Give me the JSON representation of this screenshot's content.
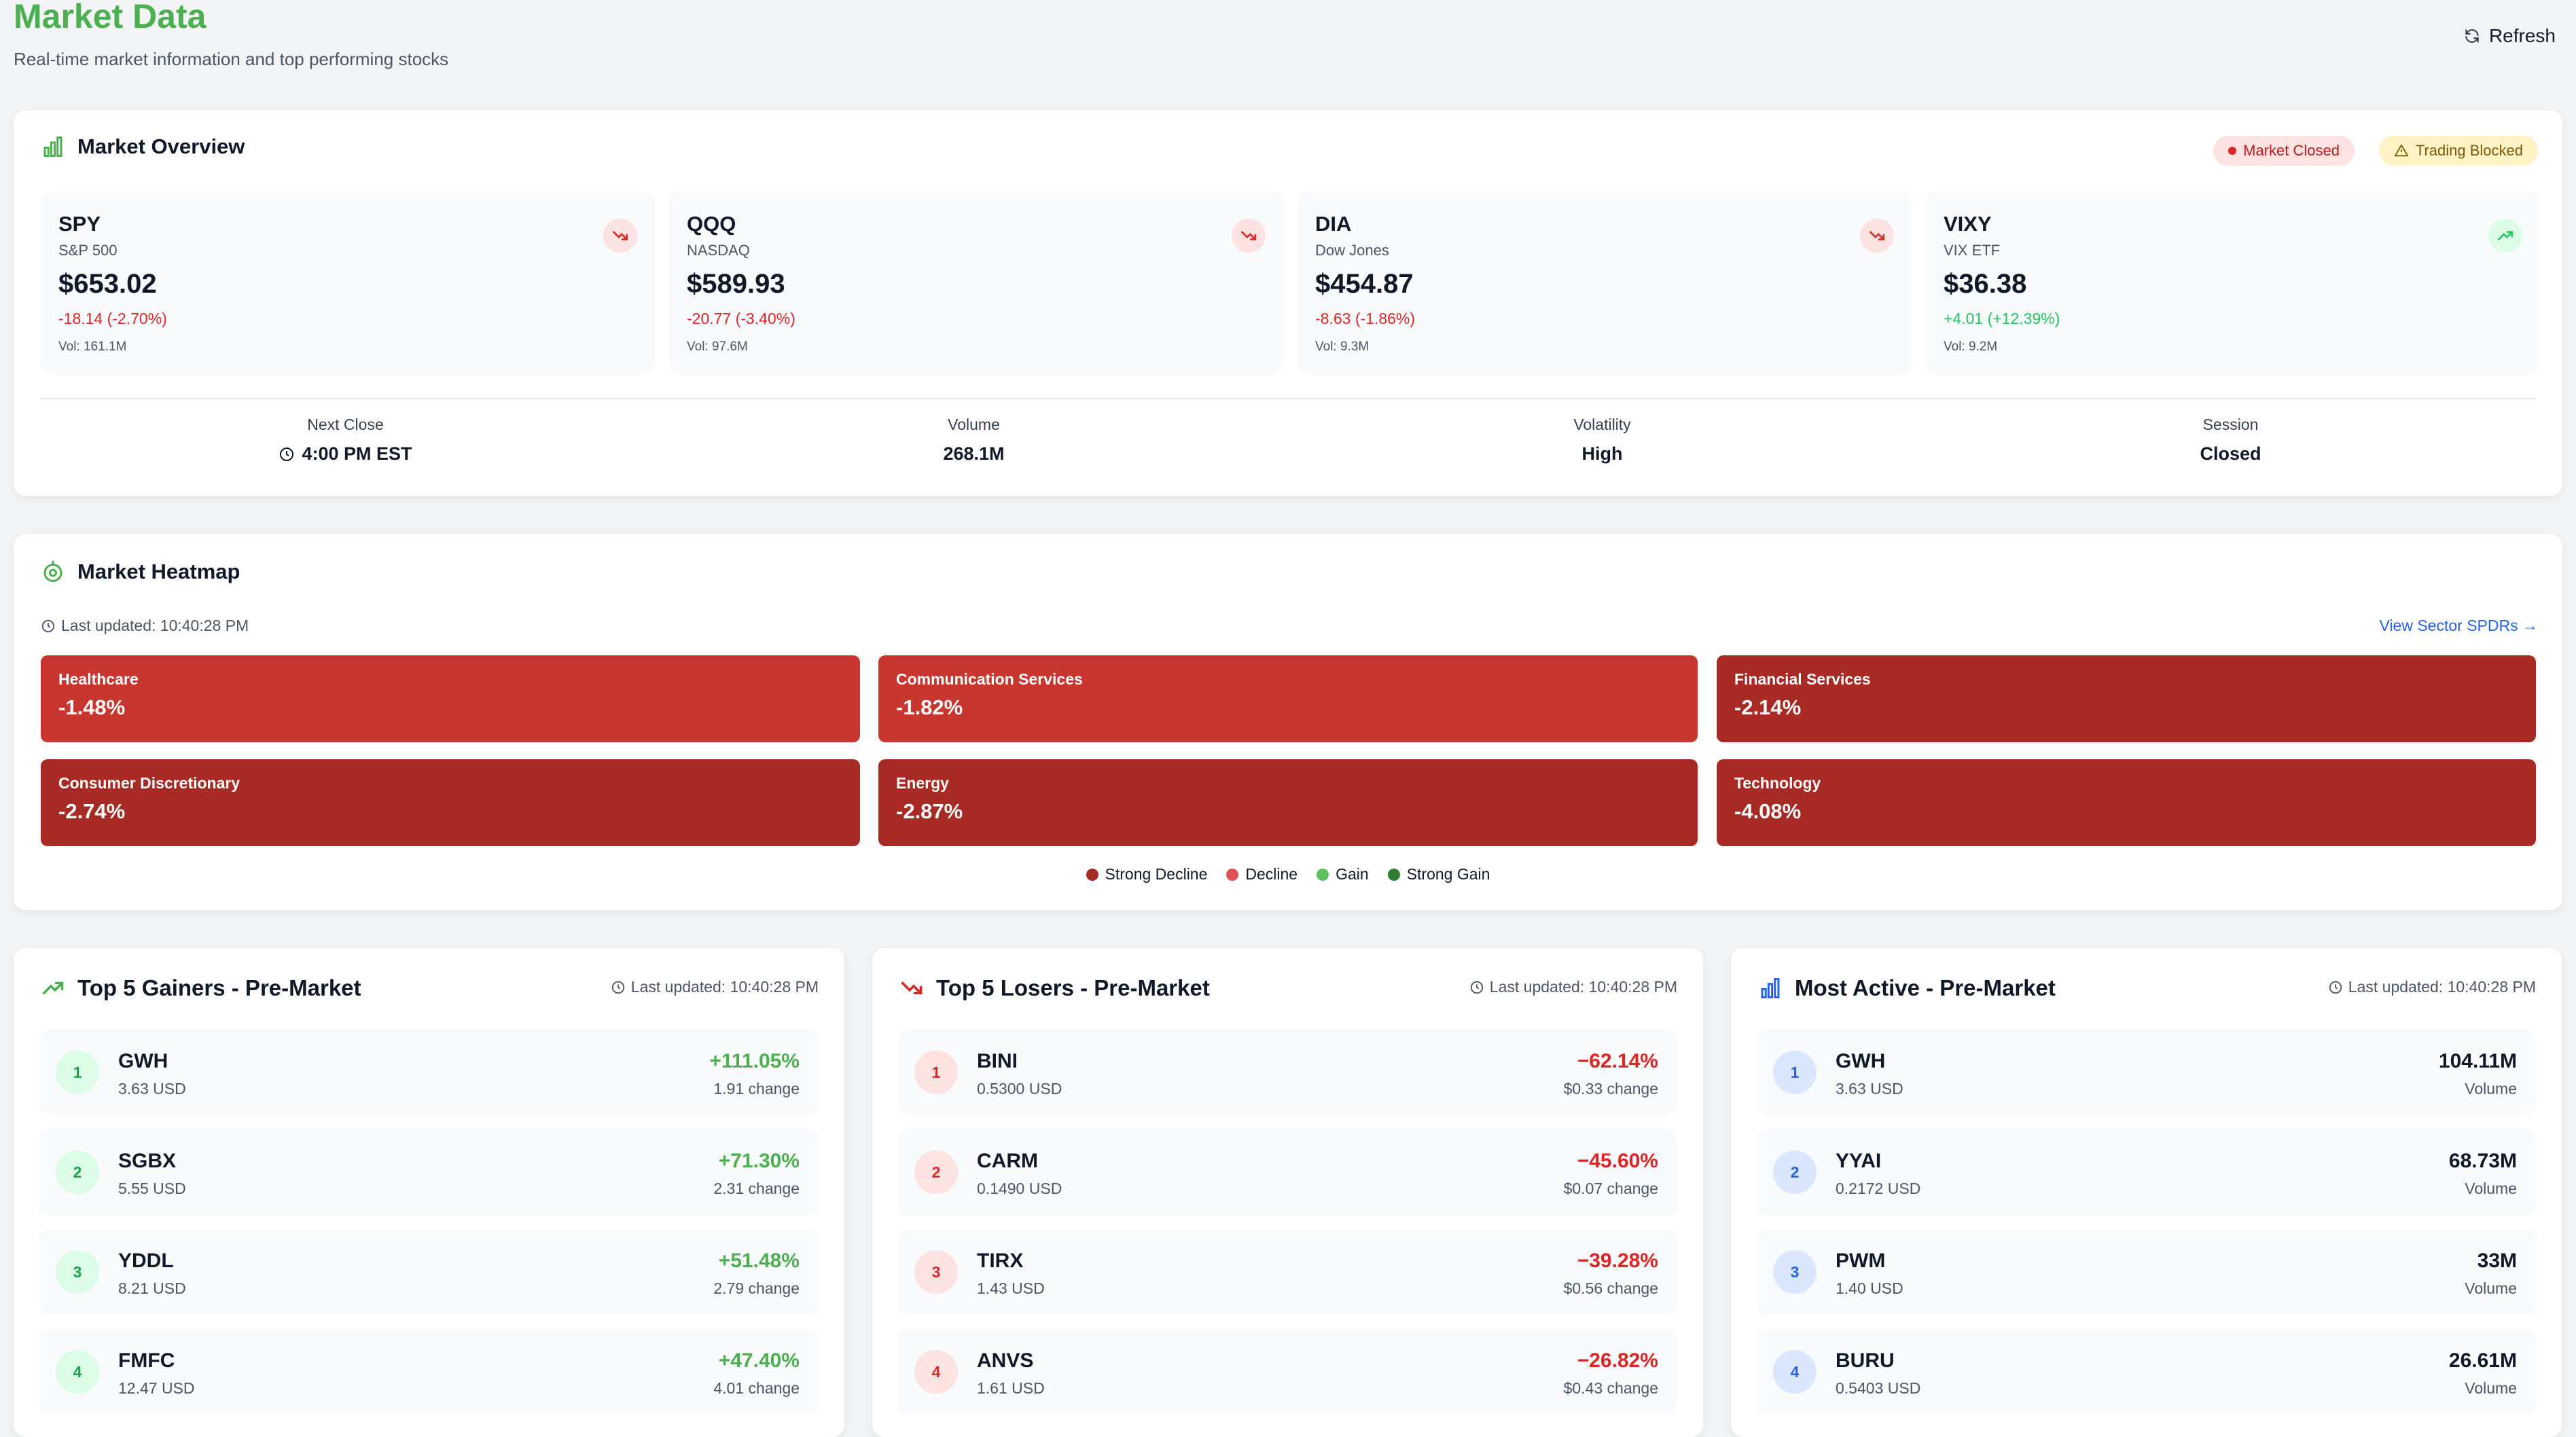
{
  "header": {
    "title": "Market Data",
    "subtitle": "Real-time market information and top performing stocks",
    "refresh_label": "Refresh"
  },
  "overview": {
    "title": "Market Overview",
    "badges": {
      "market_status": "Market Closed",
      "trading_status": "Trading Blocked"
    },
    "indices": [
      {
        "symbol": "SPY",
        "name": "S&P 500",
        "price": "$653.02",
        "change": "-18.14 (-2.70%)",
        "volume": "Vol: 161.1M",
        "trend": "down"
      },
      {
        "symbol": "QQQ",
        "name": "NASDAQ",
        "price": "$589.93",
        "change": "-20.77 (-3.40%)",
        "volume": "Vol: 97.6M",
        "trend": "down"
      },
      {
        "symbol": "DIA",
        "name": "Dow Jones",
        "price": "$454.87",
        "change": "-8.63 (-1.86%)",
        "volume": "Vol: 9.3M",
        "trend": "down"
      },
      {
        "symbol": "VIXY",
        "name": "VIX ETF",
        "price": "$36.38",
        "change": "+4.01 (+12.39%)",
        "volume": "Vol: 9.2M",
        "trend": "up"
      }
    ],
    "stats": [
      {
        "label": "Next Close",
        "value": "4:00 PM EST"
      },
      {
        "label": "Volume",
        "value": "268.1M"
      },
      {
        "label": "Volatility",
        "value": "High"
      },
      {
        "label": "Session",
        "value": "Closed"
      }
    ]
  },
  "heatmap": {
    "title": "Market Heatmap",
    "last_updated": "Last updated: 10:40:28 PM",
    "link": "View Sector SPDRs →",
    "sectors": [
      {
        "name": "Healthcare",
        "change": "-1.48%"
      },
      {
        "name": "Communication Services",
        "change": "-1.82%"
      },
      {
        "name": "Financial Services",
        "change": "-2.14%"
      },
      {
        "name": "Consumer Discretionary",
        "change": "-2.74%"
      },
      {
        "name": "Energy",
        "change": "-2.87%"
      },
      {
        "name": "Technology",
        "change": "-4.08%"
      }
    ],
    "legend": [
      "Strong Decline",
      "Decline",
      "Gain",
      "Strong Gain"
    ],
    "colors": {
      "decline": "#c8372f",
      "strong_decline": "#a82a25",
      "gain": "#4caf50",
      "strong_gain": "#2e7d32"
    }
  },
  "gainers": {
    "title": "Top 5 Gainers - Pre-Market",
    "last_updated": "Last updated: 10:40:28 PM",
    "items": [
      {
        "rank": "1",
        "symbol": "GWH",
        "price": "3.63 USD",
        "value": "+111.05%",
        "sub": "1.91 change"
      },
      {
        "rank": "2",
        "symbol": "SGBX",
        "price": "5.55 USD",
        "value": "+71.30%",
        "sub": "2.31 change"
      },
      {
        "rank": "3",
        "symbol": "YDDL",
        "price": "8.21 USD",
        "value": "+51.48%",
        "sub": "2.79 change"
      },
      {
        "rank": "4",
        "symbol": "FMFC",
        "price": "12.47 USD",
        "value": "+47.40%",
        "sub": "4.01 change"
      }
    ]
  },
  "losers": {
    "title": "Top 5 Losers - Pre-Market",
    "last_updated": "Last updated: 10:40:28 PM",
    "items": [
      {
        "rank": "1",
        "symbol": "BINI",
        "price": "0.5300 USD",
        "value": "−62.14%",
        "sub": "$0.33 change"
      },
      {
        "rank": "2",
        "symbol": "CARM",
        "price": "0.1490 USD",
        "value": "−45.60%",
        "sub": "$0.07 change"
      },
      {
        "rank": "3",
        "symbol": "TIRX",
        "price": "1.43 USD",
        "value": "−39.28%",
        "sub": "$0.56 change"
      },
      {
        "rank": "4",
        "symbol": "ANVS",
        "price": "1.61 USD",
        "value": "−26.82%",
        "sub": "$0.43 change"
      }
    ]
  },
  "active": {
    "title": "Most Active - Pre-Market",
    "last_updated": "Last updated: 10:40:28 PM",
    "items": [
      {
        "rank": "1",
        "symbol": "GWH",
        "price": "3.63 USD",
        "value": "104.11M",
        "sub": "Volume"
      },
      {
        "rank": "2",
        "symbol": "YYAI",
        "price": "0.2172 USD",
        "value": "68.73M",
        "sub": "Volume"
      },
      {
        "rank": "3",
        "symbol": "PWM",
        "price": "1.40 USD",
        "value": "33M",
        "sub": "Volume"
      },
      {
        "rank": "4",
        "symbol": "BURU",
        "price": "0.5403 USD",
        "value": "26.61M",
        "sub": "Volume"
      }
    ]
  }
}
